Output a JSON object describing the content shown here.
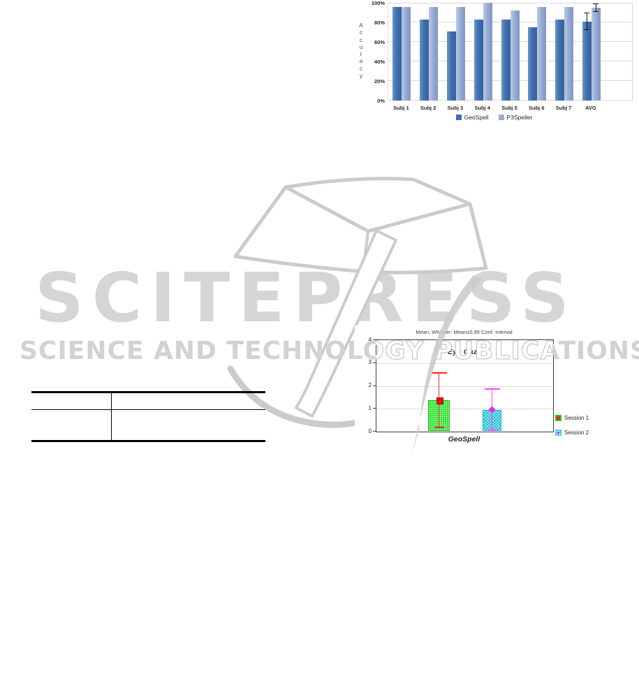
{
  "document": {
    "kind": "paper-page",
    "background": "#ffffff"
  },
  "watermark": {
    "brand": "SCITEPRESS",
    "tagline": "SCIENCE AND TECHNOLOGY PUBLICATIONS",
    "text_color": "#d5d5d5",
    "outline_color": "#c6c6c6"
  },
  "table": {
    "columns": [
      "",
      ""
    ],
    "rows": [
      [
        "",
        ""
      ],
      [
        "",
        ""
      ]
    ]
  },
  "chart_data": [
    {
      "type": "bar",
      "title": "",
      "ylabel": "Accuracy",
      "categories": [
        "Subj 1",
        "Subj 2",
        "Subj 3",
        "Subj 4",
        "Subj 5",
        "Subj 6",
        "Subj 7",
        "AVG"
      ],
      "series": [
        {
          "name": "GeoSpell",
          "color_main": "#3f70ae",
          "color_light": "#6d95c5",
          "color_dark": "#35619c",
          "values": [
            96,
            83,
            71,
            83,
            83,
            75,
            83,
            81
          ],
          "errors": [
            null,
            null,
            null,
            null,
            null,
            null,
            null,
            8.5
          ]
        },
        {
          "name": "P3Speller",
          "color_main": "#97add6",
          "color_light": "#bcc9e4",
          "color_dark": "#8096c3",
          "values": [
            96,
            96,
            96,
            100,
            92,
            96,
            96,
            95
          ],
          "errors": [
            null,
            null,
            null,
            null,
            null,
            null,
            null,
            4
          ]
        }
      ],
      "ylim": [
        0,
        100
      ],
      "ytick_labels": [
        "0%",
        "20%",
        "40%",
        "60%",
        "80%",
        "100%"
      ],
      "grid": true,
      "legend_position": "bottom"
    },
    {
      "type": "bar-whisker",
      "title": "Mean; Whisker: Mean±0,95 Conf. Interval",
      "inner_title": "Eye Gaze",
      "xlabel": "GeoSpell",
      "ylim": [
        0,
        4
      ],
      "ytick_labels": [
        "0",
        "1",
        "2",
        "3",
        "4"
      ],
      "grid": true,
      "legend_position": "right",
      "series": [
        {
          "name": "Session 1",
          "mean": 1.38,
          "ci_low": 0.17,
          "ci_high": 2.57,
          "pattern": "dots",
          "bar_color": "#2fe42f",
          "whisker_color": "#ff2222",
          "marker": "square",
          "marker_color": "#ee1111"
        },
        {
          "name": "Session 2",
          "mean": 0.96,
          "ci_low": 0.07,
          "ci_high": 1.85,
          "pattern": "crosshatch",
          "bar_color": "#aef4fa",
          "whisker_color": "#ff44ff",
          "marker": "diamond",
          "marker_color": "#ee22ee"
        }
      ]
    }
  ]
}
